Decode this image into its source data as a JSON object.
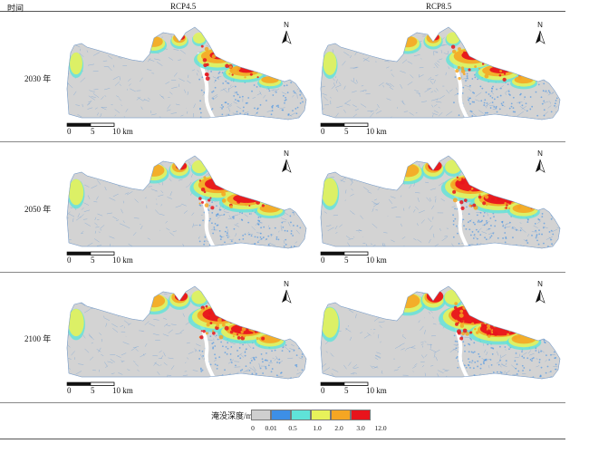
{
  "header": {
    "time_label": "时间",
    "col1": "RCP4.5",
    "col2": "RCP8.5"
  },
  "rows": [
    {
      "year": "2030 年"
    },
    {
      "year": "2050 年"
    },
    {
      "year": "2100 年"
    }
  ],
  "map": {
    "north": "N",
    "scale": {
      "t0": "0",
      "t1": "5",
      "t2": "10 km"
    }
  },
  "legend": {
    "title": "淹没深度/m",
    "ticks": [
      "0",
      "0.01",
      "0.5",
      "1.0",
      "2.0",
      "3.0",
      "12.0"
    ],
    "colors": [
      "#cfcfcf",
      "#3d8fe6",
      "#5fe3d8",
      "#e8f25a",
      "#f5a623",
      "#e8141c"
    ]
  },
  "panels": [
    {
      "scenario": "RCP4.5",
      "year": "2030",
      "severity": 0.45
    },
    {
      "scenario": "RCP8.5",
      "year": "2030",
      "severity": 0.55
    },
    {
      "scenario": "RCP4.5",
      "year": "2050",
      "severity": 0.7
    },
    {
      "scenario": "RCP8.5",
      "year": "2050",
      "severity": 0.85
    },
    {
      "scenario": "RCP4.5",
      "year": "2100",
      "severity": 0.8
    },
    {
      "scenario": "RCP8.5",
      "year": "2100",
      "severity": 1.0
    }
  ]
}
